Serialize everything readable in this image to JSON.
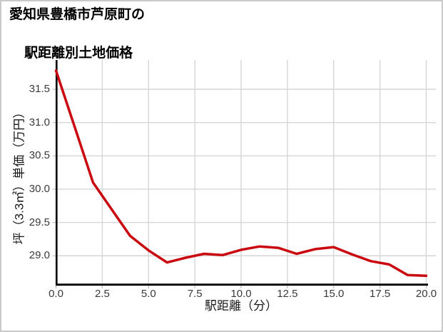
{
  "figure": {
    "title_line1": "愛知県豊橋市芦原町の",
    "title_line2": "駅距離別土地価格"
  },
  "chart_data": {
    "type": "line",
    "title": "愛知県豊橋市芦原町の駅距離別土地価格",
    "xlabel": "駅距離（分）",
    "ylabel": "坪（3.3㎡）単価（万円）",
    "x": [
      0,
      1,
      2,
      3,
      4,
      5,
      6,
      7,
      8,
      9,
      10,
      11,
      12,
      13,
      14,
      15,
      16,
      17,
      18,
      19,
      20
    ],
    "values": [
      31.78,
      30.94,
      30.1,
      29.7,
      29.3,
      29.08,
      28.9,
      28.97,
      29.03,
      29.01,
      29.09,
      29.14,
      29.12,
      29.03,
      29.1,
      29.13,
      29.02,
      28.92,
      28.87,
      28.71,
      28.7
    ],
    "x_tick_labels": [
      "0.0",
      "2.5",
      "5.0",
      "7.5",
      "10.0",
      "12.5",
      "15.0",
      "17.5",
      "20.0"
    ],
    "y_tick_labels": [
      "29.0",
      "29.5",
      "30.0",
      "30.5",
      "31.0",
      "31.5"
    ],
    "xlim": [
      0,
      20.45
    ],
    "ylim": [
      28.57,
      31.94
    ],
    "grid": true,
    "legend": false
  },
  "colors": {
    "line": "#c9090f",
    "grid": "#d6d6d6",
    "spine": "#000000",
    "tick_mark": "#bdbdbd",
    "tick_text": "#3a3a3a",
    "axis_title_text": "#1a1a1a",
    "title_text": "#000000",
    "background": "#ffffff",
    "border": "#c9c9c9"
  }
}
